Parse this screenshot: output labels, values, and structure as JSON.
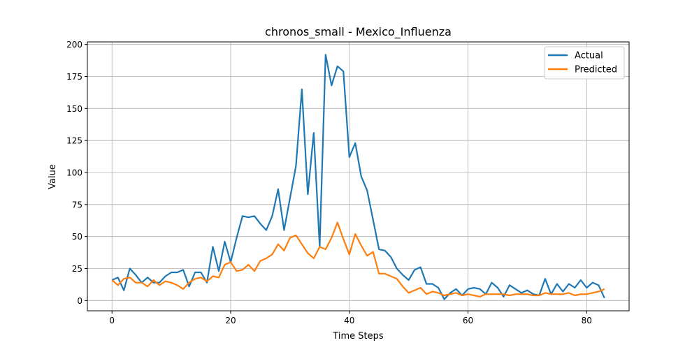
{
  "chart_data": {
    "type": "line",
    "title": "chronos_small - Mexico_Influenza",
    "xlabel": "Time Steps",
    "ylabel": "Value",
    "xlim": [
      -4.15,
      87.15
    ],
    "ylim": [
      -8,
      202
    ],
    "xticks": [
      0,
      20,
      40,
      60,
      80
    ],
    "yticks": [
      0,
      25,
      50,
      75,
      100,
      125,
      150,
      175,
      200
    ],
    "grid": true,
    "legend_position": "top-right",
    "series": [
      {
        "name": "Actual",
        "color": "#1f77b4",
        "values": [
          16,
          18,
          8,
          25,
          20,
          14,
          18,
          14,
          14,
          19,
          22,
          22,
          24,
          11,
          22,
          22,
          14,
          42,
          23,
          46,
          30,
          49,
          66,
          65,
          66,
          60,
          55,
          66,
          87,
          55,
          80,
          105,
          165,
          83,
          131,
          42,
          192,
          168,
          183,
          179,
          112,
          123,
          97,
          86,
          63,
          40,
          39,
          34,
          25,
          20,
          16,
          24,
          26,
          13,
          13,
          10,
          1,
          6,
          9,
          4,
          9,
          10,
          9,
          5,
          14,
          10,
          3,
          12,
          9,
          6,
          8,
          5,
          4,
          17,
          5,
          13,
          7,
          13,
          10,
          16,
          10,
          14,
          12,
          2
        ]
      },
      {
        "name": "Predicted",
        "color": "#ff7f0e",
        "values": [
          16,
          12,
          17,
          18,
          14,
          14,
          11,
          16,
          12,
          15,
          14,
          12,
          9,
          14,
          17,
          18,
          15,
          19,
          18,
          28,
          30,
          23,
          24,
          28,
          23,
          31,
          33,
          36,
          44,
          39,
          49,
          51,
          44,
          37,
          33,
          42,
          40,
          49,
          61,
          48,
          36,
          52,
          43,
          35,
          38,
          21,
          21,
          19,
          17,
          11,
          6,
          8,
          10,
          5,
          7,
          6,
          4,
          5,
          6,
          4,
          5,
          4,
          3,
          5,
          5,
          5,
          5,
          4,
          5,
          5,
          5,
          4,
          4,
          6,
          5,
          5,
          5,
          6,
          4,
          5,
          5,
          6,
          7,
          9
        ]
      }
    ]
  }
}
